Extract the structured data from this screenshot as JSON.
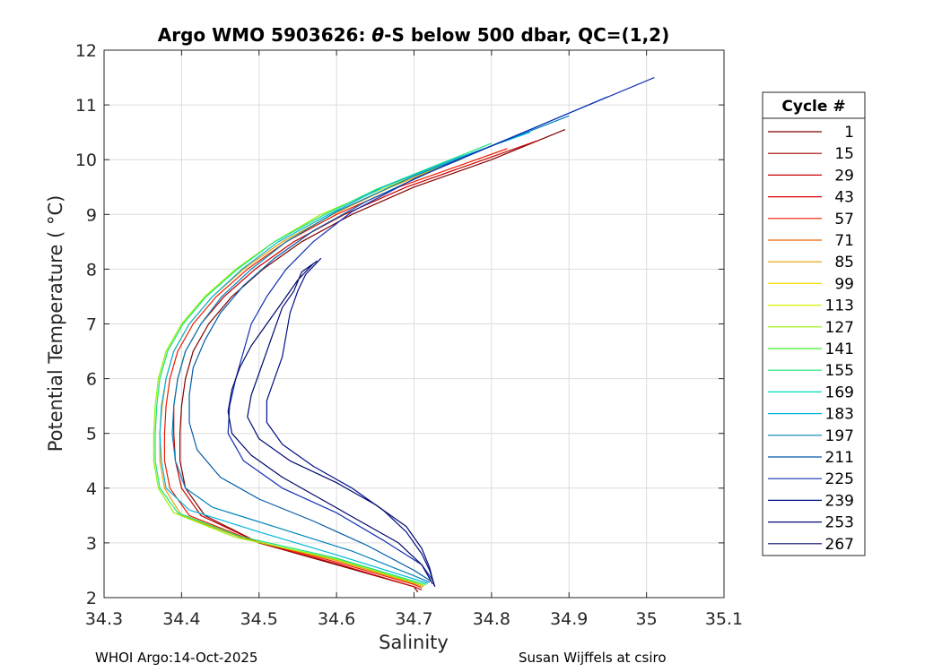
{
  "footer": {
    "left": "WHOI Argo:14-Oct-2025",
    "right": "Susan Wijffels at csiro"
  },
  "chart_data": {
    "type": "line",
    "title": "Argo WMO 5903626: θ-S below 500 dbar,  QC=(1,2)",
    "title_parts": {
      "prefix": "Argo WMO 5903626: ",
      "theta": "θ",
      "suffix": "-S below 500 dbar,  QC=(1,2)"
    },
    "xlabel": "Salinity",
    "ylabel": "Potential Temperature ( °C)",
    "xlim": [
      34.3,
      35.1
    ],
    "ylim": [
      2,
      12
    ],
    "xticks": [
      34.3,
      34.4,
      34.5,
      34.6,
      34.7,
      34.8,
      34.9,
      35,
      35.1
    ],
    "xtick_labels": [
      "34.3",
      "34.4",
      "34.5",
      "34.6",
      "34.7",
      "34.8",
      "34.9",
      "35",
      "35.1"
    ],
    "yticks": [
      2,
      3,
      4,
      5,
      6,
      7,
      8,
      9,
      10,
      11,
      12
    ],
    "ytick_labels": [
      "2",
      "3",
      "4",
      "5",
      "6",
      "7",
      "8",
      "9",
      "10",
      "11",
      "12"
    ],
    "grid": true,
    "legend": {
      "title": "Cycle #",
      "placement": "outside-right",
      "entries": [
        {
          "name": "1",
          "color": "#800000"
        },
        {
          "name": "15",
          "color": "#a60000"
        },
        {
          "name": "29",
          "color": "#c80000"
        },
        {
          "name": "43",
          "color": "#e00000"
        },
        {
          "name": "57",
          "color": "#ee1a00"
        },
        {
          "name": "71",
          "color": "#ec6400"
        },
        {
          "name": "85",
          "color": "#e6a000"
        },
        {
          "name": "99",
          "color": "#f2dc00"
        },
        {
          "name": "113",
          "color": "#d6f000"
        },
        {
          "name": "127",
          "color": "#96f000"
        },
        {
          "name": "141",
          "color": "#40ee30"
        },
        {
          "name": "155",
          "color": "#18e478"
        },
        {
          "name": "169",
          "color": "#00dcbe"
        },
        {
          "name": "183",
          "color": "#00b6dc"
        },
        {
          "name": "197",
          "color": "#0082b8"
        },
        {
          "name": "211",
          "color": "#005aa8"
        },
        {
          "name": "225",
          "color": "#1030b4"
        },
        {
          "name": "239",
          "color": "#000f88"
        },
        {
          "name": "253",
          "color": "#000a70"
        },
        {
          "name": "267",
          "color": "#00086a"
        }
      ]
    },
    "series": [
      {
        "color": "#800000",
        "values": [
          [
            34.895,
            10.55
          ],
          [
            34.8,
            10.0
          ],
          [
            34.7,
            9.5
          ],
          [
            34.62,
            9.0
          ],
          [
            34.555,
            8.5
          ],
          [
            34.505,
            8.0
          ],
          [
            34.465,
            7.5
          ],
          [
            34.435,
            7.0
          ],
          [
            34.415,
            6.5
          ],
          [
            34.405,
            6.0
          ],
          [
            34.4,
            5.5
          ],
          [
            34.398,
            5.0
          ],
          [
            34.398,
            4.5
          ],
          [
            34.405,
            4.0
          ],
          [
            34.43,
            3.5
          ],
          [
            34.5,
            3.0
          ],
          [
            34.6,
            2.6
          ],
          [
            34.7,
            2.2
          ],
          [
            34.705,
            2.1
          ]
        ]
      },
      {
        "color": "#c80000",
        "values": [
          [
            34.86,
            10.35
          ],
          [
            34.78,
            9.95
          ],
          [
            34.69,
            9.5
          ],
          [
            34.61,
            9.0
          ],
          [
            34.545,
            8.5
          ],
          [
            34.495,
            8.0
          ],
          [
            34.455,
            7.5
          ],
          [
            34.425,
            7.0
          ],
          [
            34.405,
            6.5
          ],
          [
            34.395,
            6.0
          ],
          [
            34.39,
            5.5
          ],
          [
            34.39,
            5.0
          ],
          [
            34.392,
            4.5
          ],
          [
            34.4,
            4.0
          ],
          [
            34.425,
            3.5
          ],
          [
            34.5,
            3.0
          ],
          [
            34.6,
            2.62
          ],
          [
            34.7,
            2.2
          ],
          [
            34.71,
            2.14
          ]
        ]
      },
      {
        "color": "#ee1a00",
        "values": [
          [
            34.82,
            10.2
          ],
          [
            34.75,
            9.85
          ],
          [
            34.68,
            9.5
          ],
          [
            34.6,
            9.0
          ],
          [
            34.535,
            8.5
          ],
          [
            34.485,
            8.0
          ],
          [
            34.445,
            7.5
          ],
          [
            34.415,
            7.0
          ],
          [
            34.395,
            6.5
          ],
          [
            34.385,
            6.0
          ],
          [
            34.38,
            5.5
          ],
          [
            34.378,
            5.0
          ],
          [
            34.378,
            4.5
          ],
          [
            34.385,
            4.0
          ],
          [
            34.41,
            3.5
          ],
          [
            34.49,
            3.05
          ],
          [
            34.6,
            2.65
          ],
          [
            34.7,
            2.24
          ],
          [
            34.71,
            2.18
          ]
        ]
      },
      {
        "color": "#e6a000",
        "values": [
          [
            34.79,
            10.2
          ],
          [
            34.74,
            9.9
          ],
          [
            34.67,
            9.5
          ],
          [
            34.595,
            9.0
          ],
          [
            34.53,
            8.5
          ],
          [
            34.48,
            8.0
          ],
          [
            34.44,
            7.5
          ],
          [
            34.41,
            7.0
          ],
          [
            34.39,
            6.5
          ],
          [
            34.38,
            6.0
          ],
          [
            34.375,
            5.5
          ],
          [
            34.372,
            5.0
          ],
          [
            34.372,
            4.5
          ],
          [
            34.378,
            4.0
          ],
          [
            34.4,
            3.5
          ],
          [
            34.48,
            3.08
          ],
          [
            34.6,
            2.68
          ],
          [
            34.7,
            2.26
          ],
          [
            34.712,
            2.2
          ]
        ]
      },
      {
        "color": "#96f000",
        "values": [
          [
            34.76,
            10.0
          ],
          [
            34.7,
            9.7
          ],
          [
            34.63,
            9.3
          ],
          [
            34.58,
            9.0
          ],
          [
            34.52,
            8.5
          ],
          [
            34.47,
            8.0
          ],
          [
            34.43,
            7.5
          ],
          [
            34.4,
            7.0
          ],
          [
            34.38,
            6.5
          ],
          [
            34.37,
            6.0
          ],
          [
            34.366,
            5.5
          ],
          [
            34.364,
            5.0
          ],
          [
            34.364,
            4.5
          ],
          [
            34.37,
            4.0
          ],
          [
            34.39,
            3.55
          ],
          [
            34.47,
            3.1
          ],
          [
            34.6,
            2.7
          ],
          [
            34.7,
            2.28
          ],
          [
            34.714,
            2.22
          ]
        ]
      },
      {
        "color": "#18e478",
        "values": [
          [
            34.8,
            10.3
          ],
          [
            34.72,
            9.85
          ],
          [
            34.65,
            9.45
          ],
          [
            34.585,
            9.0
          ],
          [
            34.52,
            8.5
          ],
          [
            34.472,
            8.0
          ],
          [
            34.432,
            7.5
          ],
          [
            34.402,
            7.0
          ],
          [
            34.382,
            6.5
          ],
          [
            34.372,
            6.0
          ],
          [
            34.368,
            5.5
          ],
          [
            34.366,
            5.0
          ],
          [
            34.366,
            4.5
          ],
          [
            34.372,
            4.0
          ],
          [
            34.395,
            3.55
          ],
          [
            34.475,
            3.12
          ],
          [
            34.6,
            2.72
          ],
          [
            34.7,
            2.3
          ],
          [
            34.716,
            2.24
          ]
        ]
      },
      {
        "color": "#00b6dc",
        "values": [
          [
            34.85,
            10.5
          ],
          [
            34.75,
            10.0
          ],
          [
            34.66,
            9.5
          ],
          [
            34.59,
            9.0
          ],
          [
            34.525,
            8.5
          ],
          [
            34.478,
            8.0
          ],
          [
            34.44,
            7.5
          ],
          [
            34.41,
            7.0
          ],
          [
            34.39,
            6.5
          ],
          [
            34.38,
            6.0
          ],
          [
            34.374,
            5.5
          ],
          [
            34.372,
            5.0
          ],
          [
            34.374,
            4.5
          ],
          [
            34.38,
            4.0
          ],
          [
            34.41,
            3.6
          ],
          [
            34.5,
            3.2
          ],
          [
            34.6,
            2.78
          ],
          [
            34.7,
            2.34
          ],
          [
            34.718,
            2.26
          ]
        ]
      },
      {
        "color": "#0082b8",
        "values": [
          [
            34.9,
            10.8
          ],
          [
            34.8,
            10.25
          ],
          [
            34.7,
            9.7
          ],
          [
            34.6,
            9.05
          ],
          [
            34.535,
            8.5
          ],
          [
            34.49,
            8.0
          ],
          [
            34.452,
            7.5
          ],
          [
            34.425,
            7.0
          ],
          [
            34.405,
            6.5
          ],
          [
            34.395,
            6.0
          ],
          [
            34.39,
            5.5
          ],
          [
            34.388,
            5.0
          ],
          [
            34.392,
            4.5
          ],
          [
            34.405,
            4.0
          ],
          [
            34.44,
            3.65
          ],
          [
            34.53,
            3.25
          ],
          [
            34.62,
            2.85
          ],
          [
            34.7,
            2.4
          ],
          [
            34.72,
            2.28
          ]
        ]
      },
      {
        "color": "#005aa8",
        "values": [
          [
            34.95,
            11.15
          ],
          [
            34.85,
            10.55
          ],
          [
            34.74,
            9.9
          ],
          [
            34.64,
            9.25
          ],
          [
            34.57,
            8.7
          ],
          [
            34.52,
            8.2
          ],
          [
            34.48,
            7.7
          ],
          [
            34.45,
            7.2
          ],
          [
            34.43,
            6.7
          ],
          [
            34.415,
            6.2
          ],
          [
            34.41,
            5.7
          ],
          [
            34.41,
            5.2
          ],
          [
            34.42,
            4.7
          ],
          [
            34.45,
            4.2
          ],
          [
            34.5,
            3.8
          ],
          [
            34.57,
            3.4
          ],
          [
            34.64,
            2.95
          ],
          [
            34.7,
            2.5
          ],
          [
            34.722,
            2.3
          ]
        ]
      },
      {
        "color": "#1030b4",
        "values": [
          [
            35.01,
            11.5
          ],
          [
            34.9,
            10.85
          ],
          [
            34.8,
            10.25
          ],
          [
            34.7,
            9.65
          ],
          [
            34.62,
            9.05
          ],
          [
            34.57,
            8.5
          ],
          [
            34.535,
            8.0
          ],
          [
            34.51,
            7.5
          ],
          [
            34.49,
            7.0
          ],
          [
            34.48,
            6.5
          ],
          [
            34.47,
            6.0
          ],
          [
            34.462,
            5.5
          ],
          [
            34.46,
            5.0
          ],
          [
            34.48,
            4.5
          ],
          [
            34.53,
            4.0
          ],
          [
            34.6,
            3.55
          ],
          [
            34.66,
            3.05
          ],
          [
            34.71,
            2.6
          ],
          [
            34.725,
            2.3
          ]
        ]
      },
      {
        "color": "#000f88",
        "values": [
          [
            34.58,
            8.2
          ],
          [
            34.56,
            7.9
          ],
          [
            34.55,
            7.6
          ],
          [
            34.54,
            7.2
          ],
          [
            34.535,
            6.8
          ],
          [
            34.53,
            6.4
          ],
          [
            34.52,
            6.0
          ],
          [
            34.51,
            5.6
          ],
          [
            34.51,
            5.2
          ],
          [
            34.53,
            4.8
          ],
          [
            34.57,
            4.4
          ],
          [
            34.62,
            4.0
          ],
          [
            34.66,
            3.6
          ],
          [
            34.69,
            3.2
          ],
          [
            34.71,
            2.8
          ],
          [
            34.72,
            2.5
          ],
          [
            34.727,
            2.2
          ]
        ]
      },
      {
        "color": "#000a70",
        "values": [
          [
            34.575,
            8.15
          ],
          [
            34.555,
            7.95
          ],
          [
            34.545,
            7.6
          ],
          [
            34.53,
            7.3
          ],
          [
            34.52,
            6.9
          ],
          [
            34.51,
            6.5
          ],
          [
            34.5,
            6.1
          ],
          [
            34.49,
            5.7
          ],
          [
            34.485,
            5.3
          ],
          [
            34.5,
            4.9
          ],
          [
            34.54,
            4.5
          ],
          [
            34.6,
            4.1
          ],
          [
            34.65,
            3.7
          ],
          [
            34.69,
            3.3
          ],
          [
            34.71,
            2.9
          ],
          [
            34.72,
            2.55
          ],
          [
            34.726,
            2.22
          ]
        ]
      },
      {
        "color": "#00086a",
        "values": [
          [
            34.57,
            8.1
          ],
          [
            34.55,
            7.8
          ],
          [
            34.53,
            7.4
          ],
          [
            34.51,
            7.0
          ],
          [
            34.49,
            6.6
          ],
          [
            34.475,
            6.2
          ],
          [
            34.465,
            5.8
          ],
          [
            34.46,
            5.4
          ],
          [
            34.465,
            5.0
          ],
          [
            34.49,
            4.6
          ],
          [
            34.53,
            4.2
          ],
          [
            34.58,
            3.8
          ],
          [
            34.63,
            3.4
          ],
          [
            34.68,
            3.0
          ],
          [
            34.71,
            2.6
          ],
          [
            34.724,
            2.25
          ]
        ]
      }
    ]
  }
}
